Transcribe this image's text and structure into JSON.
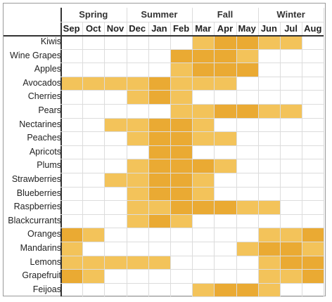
{
  "seasons": [
    {
      "label": "Spring",
      "span": [
        0,
        2
      ]
    },
    {
      "label": "Summer",
      "span": [
        3,
        5
      ]
    },
    {
      "label": "Fall",
      "span": [
        6,
        8
      ]
    },
    {
      "label": "Winter",
      "span": [
        9,
        11
      ]
    }
  ],
  "months": [
    "Sep",
    "Oct",
    "Nov",
    "Dec",
    "Jan",
    "Feb",
    "Mar",
    "Apr",
    "May",
    "Jun",
    "Jul",
    "Aug"
  ],
  "colors": {
    "light": "#f3c35a",
    "mid": "#eaaa33",
    "dark": "#e29d22",
    "grid": "#dcdcdc"
  },
  "chart_data": {
    "type": "heatmap",
    "legend": "levels 1 = light, 2 = medium, 3 = dark; 0 = not in season",
    "rows": [
      {
        "name": "Kiwis",
        "levels": [
          0,
          0,
          0,
          0,
          0,
          0,
          1,
          2,
          2,
          1,
          1,
          0
        ]
      },
      {
        "name": "Wine Grapes",
        "levels": [
          0,
          0,
          0,
          0,
          0,
          2,
          2,
          2,
          1,
          0,
          0,
          0
        ]
      },
      {
        "name": "Apples",
        "levels": [
          0,
          0,
          0,
          0,
          0,
          1,
          2,
          2,
          2,
          0,
          0,
          0
        ]
      },
      {
        "name": "Avocados",
        "levels": [
          1,
          1,
          1,
          1,
          2,
          1,
          1,
          1,
          0,
          0,
          0,
          0
        ]
      },
      {
        "name": "Cherries",
        "levels": [
          0,
          0,
          0,
          1,
          2,
          1,
          0,
          0,
          0,
          0,
          0,
          0
        ]
      },
      {
        "name": "Pears",
        "levels": [
          0,
          0,
          0,
          0,
          0,
          1,
          1,
          2,
          2,
          1,
          1,
          0
        ]
      },
      {
        "name": "Nectarines",
        "levels": [
          0,
          0,
          1,
          1,
          2,
          2,
          1,
          0,
          0,
          0,
          0,
          0
        ]
      },
      {
        "name": "Peaches",
        "levels": [
          0,
          0,
          0,
          1,
          2,
          2,
          1,
          1,
          0,
          0,
          0,
          0
        ]
      },
      {
        "name": "Apricots",
        "levels": [
          0,
          0,
          0,
          0,
          2,
          2,
          0,
          0,
          0,
          0,
          0,
          0
        ]
      },
      {
        "name": "Plums",
        "levels": [
          0,
          0,
          0,
          1,
          2,
          2,
          2,
          1,
          0,
          0,
          0,
          0
        ]
      },
      {
        "name": "Strawberries",
        "levels": [
          0,
          0,
          1,
          1,
          2,
          2,
          1,
          0,
          0,
          0,
          0,
          0
        ]
      },
      {
        "name": "Blueberries",
        "levels": [
          0,
          0,
          0,
          1,
          2,
          2,
          1,
          0,
          0,
          0,
          0,
          0
        ]
      },
      {
        "name": "Raspberries",
        "levels": [
          0,
          0,
          0,
          1,
          1,
          2,
          2,
          2,
          1,
          1,
          0,
          0
        ]
      },
      {
        "name": "Blackcurrants",
        "levels": [
          0,
          0,
          0,
          1,
          2,
          1,
          0,
          0,
          0,
          0,
          0,
          0
        ]
      },
      {
        "name": "Oranges",
        "levels": [
          2,
          1,
          0,
          0,
          0,
          0,
          0,
          0,
          0,
          1,
          1,
          2
        ]
      },
      {
        "name": "Mandarins",
        "levels": [
          1,
          0,
          0,
          0,
          0,
          0,
          0,
          0,
          1,
          2,
          2,
          1
        ]
      },
      {
        "name": "Lemons",
        "levels": [
          1,
          1,
          1,
          1,
          1,
          0,
          0,
          0,
          0,
          1,
          2,
          2
        ]
      },
      {
        "name": "Grapefruit",
        "levels": [
          2,
          1,
          0,
          0,
          0,
          0,
          0,
          0,
          0,
          1,
          1,
          2
        ]
      },
      {
        "name": "Feijoas",
        "levels": [
          0,
          0,
          0,
          0,
          0,
          0,
          1,
          2,
          2,
          1,
          0,
          0
        ]
      }
    ]
  }
}
